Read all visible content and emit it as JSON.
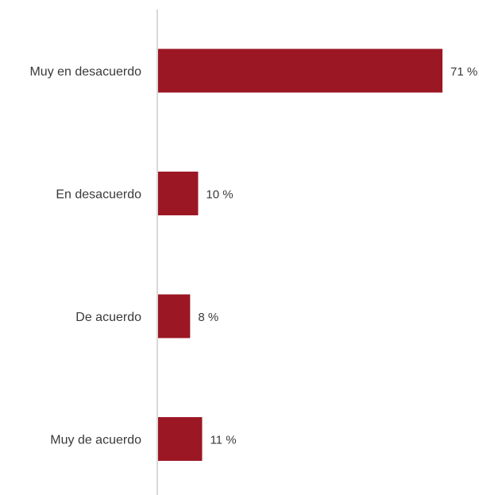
{
  "chart_data": {
    "type": "bar",
    "orientation": "horizontal",
    "categories": [
      "Muy en desacuerdo",
      "En desacuerdo",
      "De acuerdo",
      "Muy de acuerdo"
    ],
    "values": [
      71,
      10,
      8,
      11
    ],
    "value_labels": [
      "71 %",
      "10 %",
      "8 %",
      "11 %"
    ],
    "xlim": [
      0,
      71
    ],
    "bar_color": "#9b1724",
    "axis_color": "#cccccc",
    "text_color": "#3a3a3a",
    "grid": false,
    "legend": false
  }
}
